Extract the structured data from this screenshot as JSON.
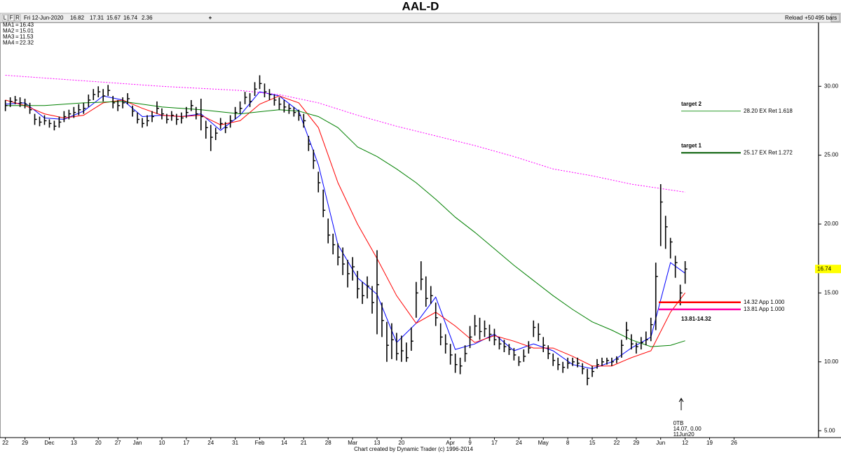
{
  "chart_data": {
    "type": "hlc",
    "title": "AAL-D",
    "header": {
      "flags": [
        "L",
        "F",
        "R"
      ],
      "date": "Fri 12-Jun-2020",
      "open": 16.82,
      "high": 17.31,
      "low": 15.67,
      "close": 16.74,
      "change": 2.36,
      "plus": "+",
      "reload": "Reload",
      "increment": "+50",
      "bars": "495 bars"
    },
    "xlim": [
      -1.1,
      166
    ],
    "ylim": [
      4.5,
      35.4
    ],
    "xticks": [
      {
        "value": 0,
        "label": "22"
      },
      {
        "value": 4,
        "label": "29"
      },
      {
        "value": 9,
        "label": "Dec"
      },
      {
        "value": 14,
        "label": "13"
      },
      {
        "value": 19,
        "label": "20"
      },
      {
        "value": 23,
        "label": "27"
      },
      {
        "value": 27,
        "label": "Jan"
      },
      {
        "value": 32,
        "label": "10"
      },
      {
        "value": 37,
        "label": "17"
      },
      {
        "value": 42,
        "label": "24"
      },
      {
        "value": 47,
        "label": "31"
      },
      {
        "value": 52,
        "label": "Feb"
      },
      {
        "value": 57,
        "label": "14"
      },
      {
        "value": 61,
        "label": "21"
      },
      {
        "value": 66,
        "label": "28"
      },
      {
        "value": 71,
        "label": "Mar"
      },
      {
        "value": 76,
        "label": "13"
      },
      {
        "value": 81,
        "label": "20"
      },
      {
        "value": 91,
        "label": "Apr"
      },
      {
        "value": 95,
        "label": "9"
      },
      {
        "value": 100,
        "label": "17"
      },
      {
        "value": 105,
        "label": "24"
      },
      {
        "value": 110,
        "label": "May"
      },
      {
        "value": 115,
        "label": "8"
      },
      {
        "value": 120,
        "label": "15"
      },
      {
        "value": 125,
        "label": "22"
      },
      {
        "value": 129,
        "label": "29"
      },
      {
        "value": 134,
        "label": "Jun"
      },
      {
        "value": 139,
        "label": "12"
      },
      {
        "value": 144,
        "label": "19"
      },
      {
        "value": 149,
        "label": "26"
      }
    ],
    "yticks": [
      {
        "value": 5,
        "label": "5.00"
      },
      {
        "value": 10,
        "label": "10.00"
      },
      {
        "value": 15,
        "label": "15.00"
      },
      {
        "value": 20,
        "label": "20.00"
      },
      {
        "value": 25,
        "label": "25.00"
      },
      {
        "value": 30,
        "label": "30.00"
      }
    ],
    "bar_color": "#000000",
    "bars": {
      "x": [
        0,
        1,
        2,
        3,
        4,
        5,
        6,
        7,
        8,
        9,
        10,
        11,
        12,
        13,
        14,
        15,
        16,
        17,
        18,
        19,
        20,
        21,
        22,
        23,
        24,
        25,
        26,
        27,
        28,
        29,
        30,
        31,
        32,
        33,
        34,
        35,
        36,
        37,
        38,
        39,
        40,
        41,
        42,
        43,
        44,
        45,
        46,
        47,
        48,
        49,
        50,
        51,
        52,
        53,
        54,
        55,
        56,
        57,
        58,
        59,
        60,
        61,
        62,
        63,
        64,
        65,
        66,
        67,
        68,
        69,
        70,
        71,
        72,
        73,
        74,
        75,
        76,
        77,
        78,
        79,
        80,
        81,
        82,
        83,
        84,
        85,
        86,
        87,
        88,
        89,
        90,
        91,
        92,
        93,
        94,
        95,
        96,
        97,
        98,
        99,
        100,
        101,
        102,
        103,
        104,
        105,
        106,
        107,
        108,
        109,
        110,
        111,
        112,
        113,
        114,
        115,
        116,
        117,
        118,
        119,
        120,
        121,
        122,
        123,
        124,
        125,
        126,
        127,
        128,
        129,
        130,
        131,
        132,
        133,
        134,
        135,
        136,
        137,
        138,
        139
      ],
      "high": [
        29.0,
        29.2,
        29.3,
        29.2,
        29.1,
        28.8,
        28.0,
        27.8,
        27.9,
        27.6,
        27.5,
        27.8,
        28.2,
        28.3,
        28.5,
        28.7,
        28.8,
        29.4,
        29.8,
        30.0,
        29.8,
        30.1,
        29.3,
        29.0,
        29.2,
        29.5,
        28.6,
        28.1,
        27.7,
        27.9,
        28.2,
        28.9,
        28.4,
        28.0,
        28.2,
        28.0,
        28.1,
        28.5,
        29.0,
        28.5,
        29.1,
        27.5,
        27.2,
        27.0,
        27.7,
        27.4,
        27.9,
        28.5,
        28.9,
        29.6,
        29.5,
        30.3,
        30.8,
        30.2,
        29.8,
        29.4,
        29.2,
        29.0,
        28.7,
        28.5,
        28.3,
        28.0,
        26.4,
        25.4,
        23.8,
        22.5,
        20.4,
        19.3,
        18.6,
        18.3,
        17.4,
        17.6,
        16.6,
        15.8,
        16.2,
        15.5,
        18.1,
        14.3,
        12.9,
        12.8,
        12.1,
        11.9,
        11.4,
        12.5,
        15.8,
        17.3,
        16.2,
        15.5,
        14.3,
        12.8,
        12.0,
        11.3,
        10.6,
        10.3,
        11.2,
        12.6,
        13.4,
        13.2,
        13.0,
        12.7,
        12.4,
        11.8,
        11.6,
        11.3,
        11.0,
        10.4,
        10.9,
        11.5,
        13.0,
        12.8,
        11.8,
        11.2,
        10.6,
        10.3,
        10.0,
        10.3,
        10.3,
        10.3,
        9.9,
        9.5,
        9.7,
        10.2,
        10.3,
        10.3,
        10.3,
        10.4,
        11.6,
        12.9,
        12.0,
        11.4,
        11.8,
        12.2,
        13.2,
        17.2,
        22.9,
        20.6,
        19.0,
        17.7,
        15.6,
        17.31
      ],
      "low": [
        28.2,
        28.5,
        28.7,
        28.5,
        28.4,
        28.0,
        27.2,
        27.1,
        27.2,
        27.0,
        26.8,
        27.0,
        27.4,
        27.6,
        27.7,
        27.9,
        28.0,
        28.5,
        29.0,
        29.2,
        28.9,
        29.3,
        28.4,
        28.2,
        28.4,
        28.7,
        27.8,
        27.3,
        27.0,
        27.1,
        27.4,
        28.0,
        27.6,
        27.3,
        27.5,
        27.2,
        27.3,
        27.7,
        28.2,
        27.6,
        26.8,
        26.2,
        25.3,
        26.1,
        26.9,
        26.6,
        27.0,
        27.6,
        28.0,
        28.7,
        28.5,
        29.3,
        29.8,
        29.2,
        29.0,
        28.6,
        28.3,
        28.1,
        28.0,
        27.8,
        27.5,
        27.0,
        25.3,
        24.0,
        22.3,
        20.5,
        18.6,
        17.8,
        17.0,
        16.3,
        15.4,
        15.9,
        14.6,
        14.2,
        14.6,
        13.5,
        12.0,
        11.8,
        10.0,
        10.2,
        10.1,
        10.0,
        10.0,
        10.8,
        13.2,
        15.2,
        14.0,
        14.2,
        12.6,
        11.2,
        10.6,
        9.8,
        9.2,
        9.1,
        10.0,
        11.0,
        11.9,
        11.6,
        11.8,
        11.5,
        11.2,
        10.9,
        10.7,
        10.5,
        10.1,
        9.7,
        10.0,
        10.6,
        11.8,
        11.5,
        10.7,
        10.2,
        9.7,
        9.4,
        9.2,
        9.5,
        9.7,
        9.6,
        9.1,
        8.3,
        8.9,
        9.5,
        9.7,
        9.8,
        9.7,
        9.9,
        10.3,
        11.6,
        10.9,
        10.6,
        10.9,
        11.2,
        11.5,
        12.3,
        18.4,
        18.2,
        17.5,
        16.1,
        14.1,
        15.67
      ],
      "close": [
        28.6,
        28.9,
        29.0,
        28.8,
        28.7,
        28.3,
        27.6,
        27.4,
        27.5,
        27.3,
        27.1,
        27.4,
        27.8,
        28.0,
        28.1,
        28.3,
        28.4,
        29.0,
        29.4,
        29.6,
        29.3,
        29.7,
        28.8,
        28.6,
        28.8,
        29.1,
        28.2,
        27.6,
        27.3,
        27.5,
        27.8,
        28.4,
        28.0,
        27.6,
        27.9,
        27.6,
        27.7,
        28.1,
        28.6,
        28.0,
        27.8,
        27.0,
        26.3,
        26.6,
        27.3,
        27.0,
        27.5,
        28.1,
        28.4,
        29.2,
        28.9,
        29.8,
        30.2,
        29.6,
        29.4,
        29.0,
        28.7,
        28.5,
        28.4,
        28.1,
        27.9,
        27.5,
        25.8,
        24.6,
        23.0,
        21.0,
        19.2,
        18.5,
        17.6,
        17.1,
        16.4,
        16.9,
        15.3,
        14.8,
        15.5,
        14.3,
        15.6,
        13.0,
        11.2,
        11.6,
        10.6,
        10.8,
        10.3,
        11.5,
        15.0,
        16.0,
        14.6,
        14.8,
        13.2,
        11.8,
        11.3,
        10.5,
        9.8,
        9.7,
        10.6,
        11.8,
        12.6,
        12.2,
        12.4,
        12.0,
        11.6,
        11.3,
        11.1,
        10.9,
        10.5,
        10.0,
        10.4,
        11.0,
        12.5,
        12.0,
        11.2,
        10.6,
        10.1,
        9.8,
        9.6,
        9.9,
        10.0,
        9.9,
        9.5,
        8.8,
        9.3,
        9.8,
        10.0,
        10.1,
        10.0,
        10.2,
        11.2,
        12.3,
        11.3,
        11.1,
        11.4,
        11.6,
        12.7,
        16.2,
        21.6,
        19.8,
        18.7,
        17.2,
        15.0,
        16.74
      ]
    },
    "separator": "=",
    "moving_averages": [
      {
        "name": "MA1",
        "value": 16.43,
        "color": "#0000ff",
        "dashed": false,
        "x": [
          0,
          4,
          8,
          12,
          16,
          20,
          24,
          28,
          32,
          36,
          40,
          44,
          48,
          52,
          56,
          60,
          64,
          68,
          72,
          76,
          80,
          84,
          88,
          92,
          96,
          100,
          104,
          108,
          112,
          116,
          120,
          124,
          128,
          132,
          136,
          139
        ],
        "values": [
          28.7,
          28.8,
          27.7,
          27.6,
          28.2,
          29.3,
          29.0,
          27.8,
          27.9,
          27.8,
          28.0,
          26.8,
          27.9,
          29.6,
          29.3,
          28.2,
          24.3,
          18.5,
          16.1,
          14.9,
          11.4,
          12.8,
          14.7,
          10.9,
          11.3,
          12.0,
          10.8,
          11.3,
          10.8,
          9.8,
          9.5,
          10.0,
          11.0,
          11.8,
          17.2,
          16.43
        ]
      },
      {
        "name": "MA2",
        "value": 15.01,
        "color": "#ff0000",
        "dashed": false,
        "x": [
          0,
          4,
          8,
          12,
          16,
          20,
          24,
          28,
          32,
          36,
          40,
          44,
          48,
          52,
          56,
          60,
          64,
          68,
          72,
          76,
          80,
          84,
          88,
          92,
          96,
          100,
          104,
          108,
          112,
          116,
          120,
          124,
          128,
          132,
          136,
          139
        ],
        "values": [
          29.0,
          28.6,
          28.0,
          27.7,
          27.9,
          28.8,
          29.0,
          28.4,
          27.9,
          27.8,
          27.9,
          27.2,
          27.5,
          28.7,
          29.3,
          28.8,
          27.0,
          23.0,
          20.0,
          17.5,
          14.8,
          12.8,
          13.6,
          12.6,
          11.4,
          11.9,
          11.5,
          11.0,
          11.0,
          10.4,
          9.7,
          9.7,
          10.3,
          10.8,
          13.6,
          15.01
        ]
      },
      {
        "name": "MA3",
        "value": 11.53,
        "color": "#008000",
        "dashed": false,
        "x": [
          0,
          8,
          16,
          24,
          32,
          40,
          48,
          56,
          60,
          64,
          68,
          72,
          76,
          80,
          84,
          88,
          92,
          96,
          100,
          104,
          108,
          112,
          116,
          120,
          124,
          128,
          132,
          136,
          139
        ],
        "values": [
          28.6,
          28.6,
          28.8,
          28.9,
          28.5,
          28.3,
          28.0,
          28.3,
          28.2,
          27.8,
          27.0,
          25.6,
          24.9,
          24.0,
          23.0,
          21.8,
          20.5,
          19.4,
          18.2,
          17.0,
          15.9,
          14.8,
          13.8,
          12.9,
          12.3,
          11.6,
          11.1,
          11.2,
          11.53
        ]
      },
      {
        "name": "MA4",
        "value": 22.32,
        "color": "#ff00ff",
        "dashed": true,
        "x": [
          0,
          16,
          32,
          48,
          56,
          64,
          72,
          80,
          88,
          96,
          104,
          112,
          120,
          128,
          139
        ],
        "values": [
          30.8,
          30.4,
          30.0,
          29.7,
          29.4,
          28.8,
          27.9,
          27.1,
          26.4,
          25.7,
          24.9,
          24.0,
          23.5,
          22.9,
          22.32
        ]
      }
    ],
    "targets": [
      {
        "name": "target 2",
        "value": 28.2,
        "label": "28.20 EX Ret 1.618",
        "color": "#2e9b2e",
        "width": 1
      },
      {
        "name": "target 1",
        "value": 25.17,
        "label": "25.17 EX Ret 1.272",
        "color": "#005a00",
        "width": 2
      }
    ],
    "price_lines": [
      {
        "value": 14.32,
        "label": "14.32 App 1.000",
        "color": "#ff0000"
      },
      {
        "value": 13.81,
        "label": "13.81 App 1.000",
        "color": "#ff00aa"
      }
    ],
    "zone_label": "13.81-14.32",
    "last_price": 16.74,
    "otb": {
      "x": 138,
      "label": "0TB",
      "detail": "14.07, 0.00",
      "date": "11Jun20"
    },
    "footer": "Chart created by Dynamic Trader  (c) 1996-2014"
  }
}
